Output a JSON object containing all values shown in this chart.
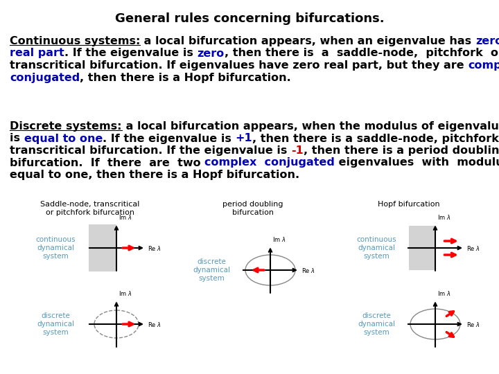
{
  "title": "General rules concerning bifurcations.",
  "bg": "#ffffff",
  "black": "#000000",
  "blue": "#0000bb",
  "cyan": "#5599bb",
  "red": "#cc0000",
  "para1": [
    [
      "Continuous systems:",
      "#000000",
      true,
      true
    ],
    [
      " a local bifurcation appears, when an eigenvalue has ",
      "#000000",
      true,
      false
    ],
    [
      "zero",
      "#0000bb",
      true,
      false
    ],
    [
      "\n",
      "#000000",
      false,
      false
    ],
    [
      "real part",
      "#0000bb",
      true,
      false
    ],
    [
      ". If the eigenvalue is ",
      "#000000",
      true,
      false
    ],
    [
      "zero",
      "#0000bb",
      true,
      false
    ],
    [
      ", then there is  a  saddle-node,  pitchfork  or",
      "#000000",
      true,
      false
    ],
    [
      "\n",
      "#000000",
      false,
      false
    ],
    [
      "transcritical bifurcation. If eigenvalues have zero real part, but they are ",
      "#000000",
      true,
      false
    ],
    [
      "complex",
      "#0000bb",
      true,
      false
    ],
    [
      "\n",
      "#000000",
      false,
      false
    ],
    [
      "conjugated",
      "#0000bb",
      true,
      false
    ],
    [
      ", then there is a Hopf bifurcation.",
      "#000000",
      true,
      false
    ]
  ],
  "para2": [
    [
      "Discrete systems:",
      "#000000",
      true,
      true
    ],
    [
      " a local bifurcation appears, when the modulus of eigenvalue",
      "#000000",
      true,
      false
    ],
    [
      "\n",
      "#000000",
      false,
      false
    ],
    [
      "is ",
      "#000000",
      true,
      false
    ],
    [
      "equal to one",
      "#0000bb",
      true,
      false
    ],
    [
      ". If the eigenvalue is ",
      "#000000",
      true,
      false
    ],
    [
      "+1",
      "#0000bb",
      true,
      false
    ],
    [
      ", then there is a saddle-node, pitchfork or",
      "#000000",
      true,
      false
    ],
    [
      "\n",
      "#000000",
      false,
      false
    ],
    [
      "transcritical bifurcation. If the eigenvalue is ",
      "#000000",
      true,
      false
    ],
    [
      "-1",
      "#cc0000",
      true,
      false
    ],
    [
      ", then there is a period doubling",
      "#000000",
      true,
      false
    ],
    [
      "\n",
      "#000000",
      false,
      false
    ],
    [
      "bifurcation.  If  there  are  two ",
      "#000000",
      true,
      false
    ],
    [
      "complex  conjugated",
      "#0000bb",
      true,
      false
    ],
    [
      " eigenvalues  with  modulus",
      "#000000",
      true,
      false
    ],
    [
      "\n",
      "#000000",
      false,
      false
    ],
    [
      "equal to one, then there is a Hopf bifurcation.",
      "#000000",
      true,
      false
    ]
  ]
}
